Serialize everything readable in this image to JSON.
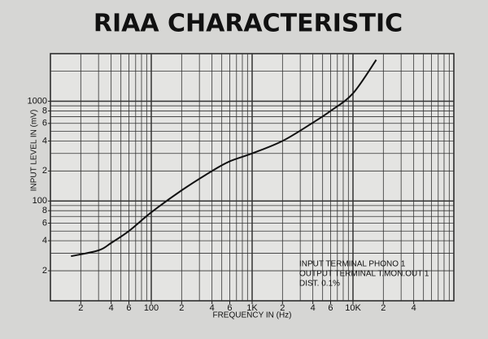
{
  "chart_data": {
    "type": "line",
    "title": "RIAA CHARACTERISTIC",
    "x_label": "FREQUENCY IN (Hz)",
    "y_label": "INPUT  LEVEL IN (mV)",
    "log_x": true,
    "log_y": true,
    "xlim": [
      10,
      100000
    ],
    "ylim": [
      10,
      3000
    ],
    "xticks": [
      {
        "value": 20,
        "label": "2"
      },
      {
        "value": 40,
        "label": "4"
      },
      {
        "value": 60,
        "label": "6"
      },
      100,
      {
        "value": 200,
        "label": "2"
      },
      {
        "value": 400,
        "label": "4"
      },
      {
        "value": 600,
        "label": "6"
      },
      {
        "value": 1000,
        "label": "1K"
      },
      {
        "value": 2000,
        "label": "2"
      },
      {
        "value": 4000,
        "label": "4"
      },
      {
        "value": 6000,
        "label": "6"
      },
      {
        "value": 10000,
        "label": "10K"
      },
      {
        "value": 20000,
        "label": "2"
      },
      {
        "value": 40000,
        "label": "4"
      }
    ],
    "yticks": [
      {
        "value": 20,
        "label": "2"
      },
      {
        "value": 40,
        "label": "4"
      },
      {
        "value": 60,
        "label": "6"
      },
      {
        "value": 80,
        "label": "8"
      },
      100,
      {
        "value": 200,
        "label": "2"
      },
      {
        "value": 400,
        "label": "4"
      },
      {
        "value": 600,
        "label": "6"
      },
      {
        "value": 800,
        "label": "8"
      },
      1000
    ],
    "xgrid": [
      20,
      30,
      40,
      50,
      60,
      70,
      80,
      90,
      100,
      200,
      300,
      400,
      500,
      600,
      700,
      800,
      900,
      1000,
      2000,
      3000,
      4000,
      5000,
      6000,
      7000,
      8000,
      9000,
      10000,
      20000,
      30000,
      40000,
      50000,
      60000,
      70000,
      80000,
      90000
    ],
    "ygrid": [
      20,
      30,
      40,
      50,
      60,
      70,
      80,
      90,
      100,
      200,
      300,
      400,
      500,
      600,
      700,
      800,
      900,
      1000,
      2000
    ],
    "grid": true,
    "color": "#111111",
    "x": [
      16,
      30,
      40,
      60,
      100,
      200,
      400,
      600,
      1000,
      2000,
      4000,
      6000,
      10000,
      17000
    ],
    "values": [
      28,
      32,
      38,
      50,
      77,
      128,
      200,
      250,
      300,
      400,
      610,
      800,
      1200,
      2600
    ],
    "annotations": [
      "INPUT TERMINAL PHONO 1",
      "OUTPUT TERMINAL T.MON.OUT 1",
      "DIST. 0.1%"
    ]
  }
}
